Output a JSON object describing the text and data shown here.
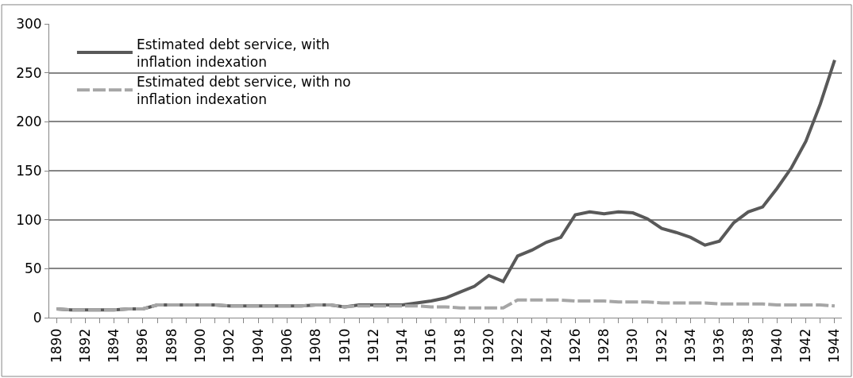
{
  "chart_data": {
    "type": "line",
    "x": [
      1890,
      1891,
      1892,
      1893,
      1894,
      1895,
      1896,
      1897,
      1898,
      1899,
      1900,
      1901,
      1902,
      1903,
      1904,
      1905,
      1906,
      1907,
      1908,
      1909,
      1910,
      1911,
      1912,
      1913,
      1914,
      1915,
      1916,
      1917,
      1918,
      1919,
      1920,
      1921,
      1922,
      1923,
      1924,
      1925,
      1926,
      1927,
      1928,
      1929,
      1930,
      1931,
      1932,
      1933,
      1934,
      1935,
      1936,
      1937,
      1938,
      1939,
      1940,
      1941,
      1942,
      1943,
      1944
    ],
    "series": [
      {
        "name": "Estimated debt service, with inflation indexation",
        "color": "#595959",
        "line_style": "solid",
        "values": [
          9,
          8,
          8,
          8,
          8,
          9,
          9,
          13,
          13,
          13,
          13,
          13,
          12,
          12,
          12,
          12,
          12,
          12,
          13,
          13,
          11,
          13,
          13,
          13,
          13,
          15,
          17,
          20,
          26,
          32,
          43,
          37,
          63,
          69,
          77,
          82,
          105,
          108,
          106,
          108,
          107,
          101,
          91,
          87,
          82,
          74,
          78,
          97,
          108,
          113,
          132,
          153,
          180,
          218,
          263
        ]
      },
      {
        "name": "Estimated debt service, with no inflation indexation",
        "color": "#a6a6a6",
        "line_style": "dashed",
        "values": [
          9,
          8,
          8,
          8,
          8,
          9,
          9,
          13,
          13,
          13,
          13,
          13,
          12,
          12,
          12,
          12,
          12,
          12,
          13,
          13,
          11,
          12,
          12,
          12,
          12,
          12,
          11,
          11,
          10,
          10,
          10,
          10,
          18,
          18,
          18,
          18,
          17,
          17,
          17,
          16,
          16,
          16,
          15,
          15,
          15,
          15,
          14,
          14,
          14,
          14,
          13,
          13,
          13,
          13,
          12
        ]
      }
    ],
    "xlim": [
      1889.5,
      1944.5
    ],
    "xticks": [
      1890,
      1892,
      1894,
      1896,
      1898,
      1900,
      1902,
      1904,
      1906,
      1908,
      1910,
      1912,
      1914,
      1916,
      1918,
      1920,
      1922,
      1924,
      1926,
      1928,
      1930,
      1932,
      1934,
      1936,
      1938,
      1940,
      1942,
      1944
    ],
    "ylim": [
      0,
      300
    ],
    "yticks": [
      0,
      50,
      100,
      150,
      200,
      250,
      300
    ],
    "grid": "y",
    "legend": "top left",
    "marker": "none"
  }
}
